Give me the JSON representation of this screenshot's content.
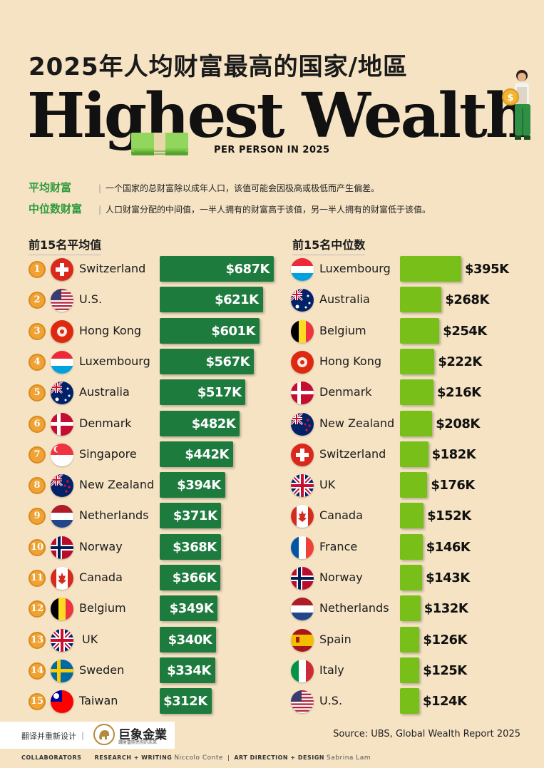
{
  "title_cn": "2025年人均财富最高的国家/地區",
  "title_en": "Highest Wealth",
  "subtitle_en": "PER PERSON IN 2025",
  "definitions": [
    {
      "term": "平均财富",
      "text": "一个国家的总财富除以成年人口，该值可能会因极高或极低而产生偏差。"
    },
    {
      "term": "中位数财富",
      "text": "人口财富分配的中间值，一半人拥有的财富高于该值，另一半人拥有的财富低于该值。"
    }
  ],
  "chart_data": [
    {
      "type": "bar",
      "title": "前15名平均值",
      "unit": "K",
      "categories": [
        "Switzerland",
        "U.S.",
        "Hong Kong",
        "Luxembourg",
        "Australia",
        "Denmark",
        "Singapore",
        "New Zealand",
        "Netherlands",
        "Norway",
        "Canada",
        "Belgium",
        "UK",
        "Sweden",
        "Taiwan"
      ],
      "ranks": [
        "1",
        "2",
        "3",
        "4",
        "5",
        "6",
        "7",
        "8",
        "9",
        "10",
        "11",
        "12",
        "13",
        "14",
        "15"
      ],
      "values": [
        687,
        621,
        601,
        567,
        517,
        482,
        442,
        394,
        371,
        368,
        366,
        349,
        340,
        334,
        312
      ],
      "labels": [
        "$687K",
        "$621K",
        "$601K",
        "$567K",
        "$517K",
        "$482K",
        "$442K",
        "$394K",
        "$371K",
        "$368K",
        "$366K",
        "$349K",
        "$340K",
        "$334K",
        "$312K"
      ],
      "flags": [
        "switzerland",
        "us",
        "hongkong",
        "luxembourg",
        "australia",
        "denmark",
        "singapore",
        "newzealand",
        "netherlands",
        "norway",
        "canada",
        "belgium",
        "uk",
        "sweden",
        "taiwan"
      ],
      "color": "#1e7b3e"
    },
    {
      "type": "bar",
      "title": "前15名中位数",
      "unit": "K",
      "categories": [
        "Luxembourg",
        "Australia",
        "Belgium",
        "Hong Kong",
        "Denmark",
        "New Zealand",
        "Switzerland",
        "UK",
        "Canada",
        "France",
        "Norway",
        "Netherlands",
        "Spain",
        "Italy",
        "U.S."
      ],
      "values": [
        395,
        268,
        254,
        222,
        216,
        208,
        182,
        176,
        152,
        146,
        143,
        132,
        126,
        125,
        124
      ],
      "labels": [
        "$395K",
        "$268K",
        "$254K",
        "$222K",
        "$216K",
        "$208K",
        "$182K",
        "$176K",
        "$152K",
        "$146K",
        "$143K",
        "$132K",
        "$126K",
        "$125K",
        "$124K"
      ],
      "flags": [
        "luxembourg",
        "australia",
        "belgium",
        "hongkong",
        "denmark",
        "newzealand",
        "switzerland",
        "uk",
        "canada",
        "france",
        "norway",
        "netherlands",
        "spain",
        "italy",
        "us"
      ],
      "color": "#78bf1a"
    }
  ],
  "footer": {
    "note": "翻译并重新设计 ｜",
    "brand": "巨象金業",
    "tagline": "讓財富照亮你的未來",
    "source": "Source: UBS, Global Wealth Report 2025",
    "collaborators": "COLLABORATORS",
    "research_label": "RESEARCH + WRITING",
    "research_name": "Niccolo Conte",
    "art_label": "ART DIRECTION + DESIGN",
    "art_name": "Sabrina Lam"
  }
}
